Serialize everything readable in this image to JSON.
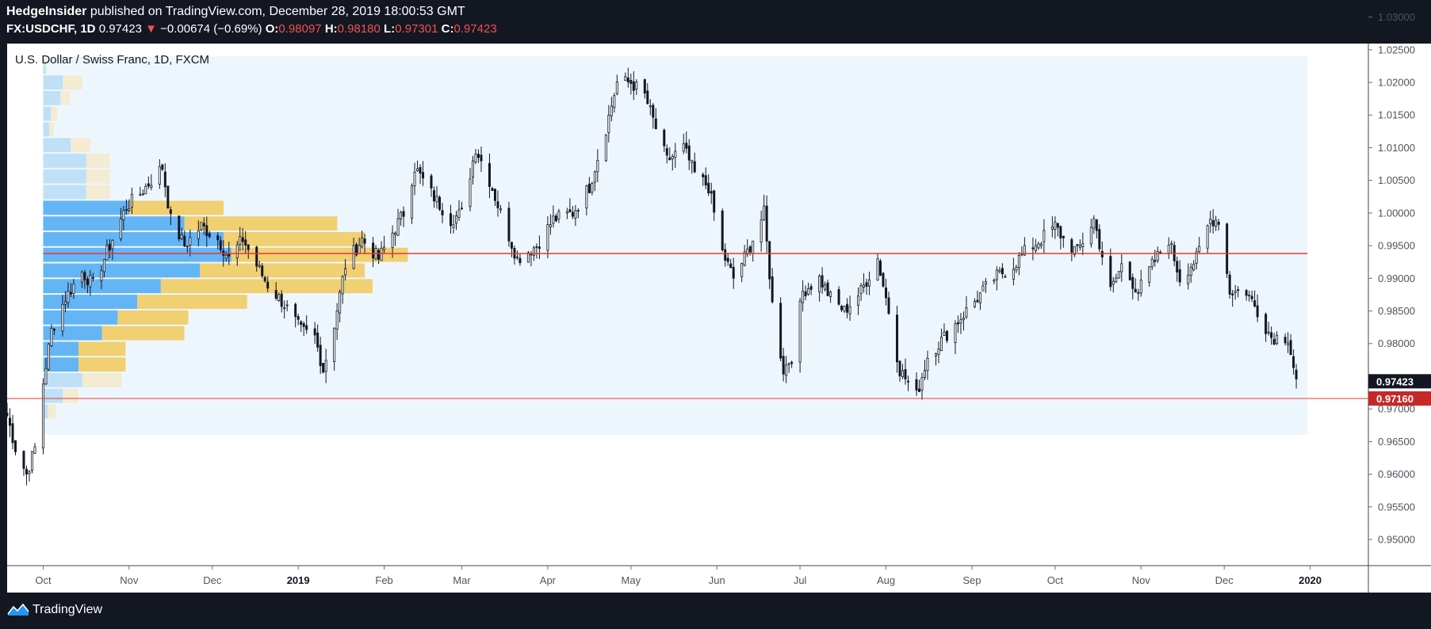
{
  "header": {
    "author": "HedgeInsider",
    "published_text": "published on TradingView.com, December 28, 2019 18:00:53 GMT",
    "symbol": "FX:USDCHF, 1D",
    "last": "0.97423",
    "change_arrow": "▼",
    "change": "−0.00674 (−0.69%)",
    "o_label": "O:",
    "o_value": "0.98097",
    "h_label": "H:",
    "h_value": "0.98180",
    "l_label": "L:",
    "l_value": "0.97301",
    "c_label": "C:",
    "c_value": "0.97423"
  },
  "chart_title": "U.S. Dollar / Swiss Franc, 1D, FXCM",
  "footer": {
    "brand": "TradingView"
  },
  "icons": {
    "brand_logo": "tradingview-logo-icon"
  },
  "colors": {
    "candle": "#131722",
    "hline_poc": "#e53935",
    "hline_support": "#e53935",
    "vp_up": "#64b5f6",
    "vp_down": "#f0d070",
    "vp_area": "#eef6fd",
    "last_price_bg": "#131722",
    "support_label_bg": "#c62828"
  },
  "chart_data": {
    "type": "candlestick",
    "title": "U.S. Dollar / Swiss Franc, 1D, FXCM",
    "y_axis": {
      "range": [
        0.946,
        1.0325
      ],
      "ticks": [
        "0.95000",
        "0.95500",
        "0.96000",
        "0.96500",
        "0.97000",
        "0.97500",
        "0.98000",
        "0.98500",
        "0.99000",
        "0.99500",
        "1.00000",
        "1.00500",
        "1.01000",
        "1.01500",
        "1.02000",
        "1.02500",
        "1.03000"
      ]
    },
    "x_axis": {
      "range": [
        "2018-09-18",
        "2020-01-22"
      ],
      "ticks": [
        {
          "date": "2018-10-01",
          "label": "Oct"
        },
        {
          "date": "2018-11-01",
          "label": "Nov"
        },
        {
          "date": "2018-12-01",
          "label": "Dec"
        },
        {
          "date": "2019-01-01",
          "label": "2019"
        },
        {
          "date": "2019-02-01",
          "label": "Feb"
        },
        {
          "date": "2019-03-01",
          "label": "Mar"
        },
        {
          "date": "2019-04-01",
          "label": "Apr"
        },
        {
          "date": "2019-05-01",
          "label": "May"
        },
        {
          "date": "2019-06-01",
          "label": "Jun"
        },
        {
          "date": "2019-07-01",
          "label": "Jul"
        },
        {
          "date": "2019-08-01",
          "label": "Aug"
        },
        {
          "date": "2019-09-01",
          "label": "Sep"
        },
        {
          "date": "2019-10-01",
          "label": "Oct"
        },
        {
          "date": "2019-11-01",
          "label": "Nov"
        },
        {
          "date": "2019-12-01",
          "label": "Dec"
        },
        {
          "date": "2020-01-01",
          "label": "2020"
        }
      ]
    },
    "price_path": [
      [
        "2018-09-18",
        0.969
      ],
      [
        "2018-09-21",
        0.964
      ],
      [
        "2018-09-25",
        0.96
      ],
      [
        "2018-09-28",
        0.964
      ],
      [
        "2018-10-01",
        0.974
      ],
      [
        "2018-10-04",
        0.982
      ],
      [
        "2018-10-09",
        0.987
      ],
      [
        "2018-10-15",
        0.991
      ],
      [
        "2018-10-19",
        0.989
      ],
      [
        "2018-10-25",
        0.995
      ],
      [
        "2018-10-31",
        1.001
      ],
      [
        "2018-11-05",
        1.003
      ],
      [
        "2018-11-09",
        1.005
      ],
      [
        "2018-11-13",
        1.007
      ],
      [
        "2018-11-16",
        0.999
      ],
      [
        "2018-11-21",
        0.995
      ],
      [
        "2018-11-27",
        0.998
      ],
      [
        "2018-12-03",
        0.996
      ],
      [
        "2018-12-07",
        0.993
      ],
      [
        "2018-12-12",
        0.996
      ],
      [
        "2018-12-17",
        0.992
      ],
      [
        "2018-12-21",
        0.989
      ],
      [
        "2018-12-27",
        0.986
      ],
      [
        "2019-01-02",
        0.982
      ],
      [
        "2019-01-07",
        0.981
      ],
      [
        "2019-01-10",
        0.976
      ],
      [
        "2019-01-14",
        0.983
      ],
      [
        "2019-01-18",
        0.992
      ],
      [
        "2019-01-24",
        0.996
      ],
      [
        "2019-01-30",
        0.993
      ],
      [
        "2019-02-04",
        0.997
      ],
      [
        "2019-02-08",
        1.0
      ],
      [
        "2019-02-12",
        1.007
      ],
      [
        "2019-02-18",
        1.003
      ],
      [
        "2019-02-25",
        0.999
      ],
      [
        "2019-03-01",
        1.0
      ],
      [
        "2019-03-06",
        1.01
      ],
      [
        "2019-03-11",
        1.005
      ],
      [
        "2019-03-15",
        1.0
      ],
      [
        "2019-03-21",
        0.993
      ],
      [
        "2019-03-28",
        0.995
      ],
      [
        "2019-04-03",
        0.999
      ],
      [
        "2019-04-10",
        1.0
      ],
      [
        "2019-04-16",
        1.004
      ],
      [
        "2019-04-22",
        1.013
      ],
      [
        "2019-04-26",
        1.02
      ],
      [
        "2019-05-01",
        1.02
      ],
      [
        "2019-05-06",
        1.018
      ],
      [
        "2019-05-10",
        1.013
      ],
      [
        "2019-05-14",
        1.008
      ],
      [
        "2019-05-20",
        1.01
      ],
      [
        "2019-05-24",
        1.006
      ],
      [
        "2019-05-29",
        1.004
      ],
      [
        "2019-06-03",
        0.994
      ],
      [
        "2019-06-07",
        0.99
      ],
      [
        "2019-06-12",
        0.994
      ],
      [
        "2019-06-18",
        1.0
      ],
      [
        "2019-06-21",
        0.986
      ],
      [
        "2019-06-25",
        0.976
      ],
      [
        "2019-06-28",
        0.978
      ],
      [
        "2019-07-02",
        0.988
      ],
      [
        "2019-07-08",
        0.99
      ],
      [
        "2019-07-12",
        0.987
      ],
      [
        "2019-07-17",
        0.985
      ],
      [
        "2019-07-23",
        0.988
      ],
      [
        "2019-07-29",
        0.993
      ],
      [
        "2019-08-02",
        0.985
      ],
      [
        "2019-08-06",
        0.976
      ],
      [
        "2019-08-12",
        0.972
      ],
      [
        "2019-08-16",
        0.978
      ],
      [
        "2019-08-22",
        0.981
      ],
      [
        "2019-08-28",
        0.984
      ],
      [
        "2019-09-03",
        0.987
      ],
      [
        "2019-09-09",
        0.99
      ],
      [
        "2019-09-16",
        0.992
      ],
      [
        "2019-09-20",
        0.994
      ],
      [
        "2019-09-26",
        0.996
      ],
      [
        "2019-10-01",
        0.998
      ],
      [
        "2019-10-04",
        0.996
      ],
      [
        "2019-10-09",
        0.994
      ],
      [
        "2019-10-15",
        0.999
      ],
      [
        "2019-10-21",
        0.988
      ],
      [
        "2019-10-25",
        0.992
      ],
      [
        "2019-10-31",
        0.988
      ],
      [
        "2019-11-05",
        0.992
      ],
      [
        "2019-11-11",
        0.996
      ],
      [
        "2019-11-15",
        0.99
      ],
      [
        "2019-11-21",
        0.993
      ],
      [
        "2019-11-26",
        0.999
      ],
      [
        "2019-11-29",
        0.999
      ],
      [
        "2019-12-03",
        0.988
      ],
      [
        "2019-12-09",
        0.988
      ],
      [
        "2019-12-13",
        0.985
      ],
      [
        "2019-12-18",
        0.981
      ],
      [
        "2019-12-24",
        0.981
      ],
      [
        "2019-12-27",
        0.9742
      ]
    ],
    "horizontal_lines": [
      {
        "value": 0.9938,
        "label": "",
        "style": "poc"
      },
      {
        "value": 0.9716,
        "label": "0.97160",
        "style": "support"
      }
    ],
    "last_price": {
      "value": 0.97423,
      "label": "0.97423"
    },
    "volume_profile": {
      "start_date": "2018-10-01",
      "end_date": "2019-12-31",
      "range": [
        0.966,
        1.024
      ],
      "rows": [
        {
          "low": 0.966,
          "high": 0.9684,
          "up": 0.2,
          "down": 0.0
        },
        {
          "low": 0.9684,
          "high": 0.9708,
          "up": 0.6,
          "down": 1.0
        },
        {
          "low": 0.9708,
          "high": 0.9732,
          "up": 2.5,
          "down": 2.0
        },
        {
          "low": 0.9732,
          "high": 0.9756,
          "up": 5.0,
          "down": 5.0
        },
        {
          "low": 0.9756,
          "high": 0.978,
          "up": 4.5,
          "down": 6.0
        },
        {
          "low": 0.978,
          "high": 0.9804,
          "up": 4.5,
          "down": 6.0
        },
        {
          "low": 0.9804,
          "high": 0.9828,
          "up": 7.5,
          "down": 10.5
        },
        {
          "low": 0.9828,
          "high": 0.9852,
          "up": 9.5,
          "down": 9.0
        },
        {
          "low": 0.9852,
          "high": 0.9876,
          "up": 12.0,
          "down": 14.0
        },
        {
          "low": 0.9876,
          "high": 0.99,
          "up": 15.0,
          "down": 27.0
        },
        {
          "low": 0.99,
          "high": 0.9924,
          "up": 20.0,
          "down": 21.0
        },
        {
          "low": 0.9924,
          "high": 0.9948,
          "up": 24.0,
          "down": 22.5
        },
        {
          "low": 0.9948,
          "high": 0.9972,
          "up": 23.0,
          "down": 18.0
        },
        {
          "low": 0.9972,
          "high": 0.9996,
          "up": 18.0,
          "down": 19.5
        },
        {
          "low": 0.9996,
          "high": 1.002,
          "up": 11.0,
          "down": 12.0
        },
        {
          "low": 1.002,
          "high": 1.0044,
          "up": 5.5,
          "down": 3.0
        },
        {
          "low": 1.0044,
          "high": 1.0068,
          "up": 5.5,
          "down": 3.0
        },
        {
          "low": 1.0068,
          "high": 1.0092,
          "up": 5.5,
          "down": 3.0
        },
        {
          "low": 1.0092,
          "high": 1.0116,
          "up": 3.5,
          "down": 2.5
        },
        {
          "low": 1.0116,
          "high": 1.014,
          "up": 0.8,
          "down": 0.6
        },
        {
          "low": 1.014,
          "high": 1.0164,
          "up": 1.0,
          "down": 0.8
        },
        {
          "low": 1.0164,
          "high": 1.0188,
          "up": 2.2,
          "down": 1.2
        },
        {
          "low": 1.0188,
          "high": 1.0212,
          "up": 2.5,
          "down": 2.5
        },
        {
          "low": 1.0212,
          "high": 1.0236,
          "up": 0.3,
          "down": 0.2
        }
      ]
    }
  }
}
